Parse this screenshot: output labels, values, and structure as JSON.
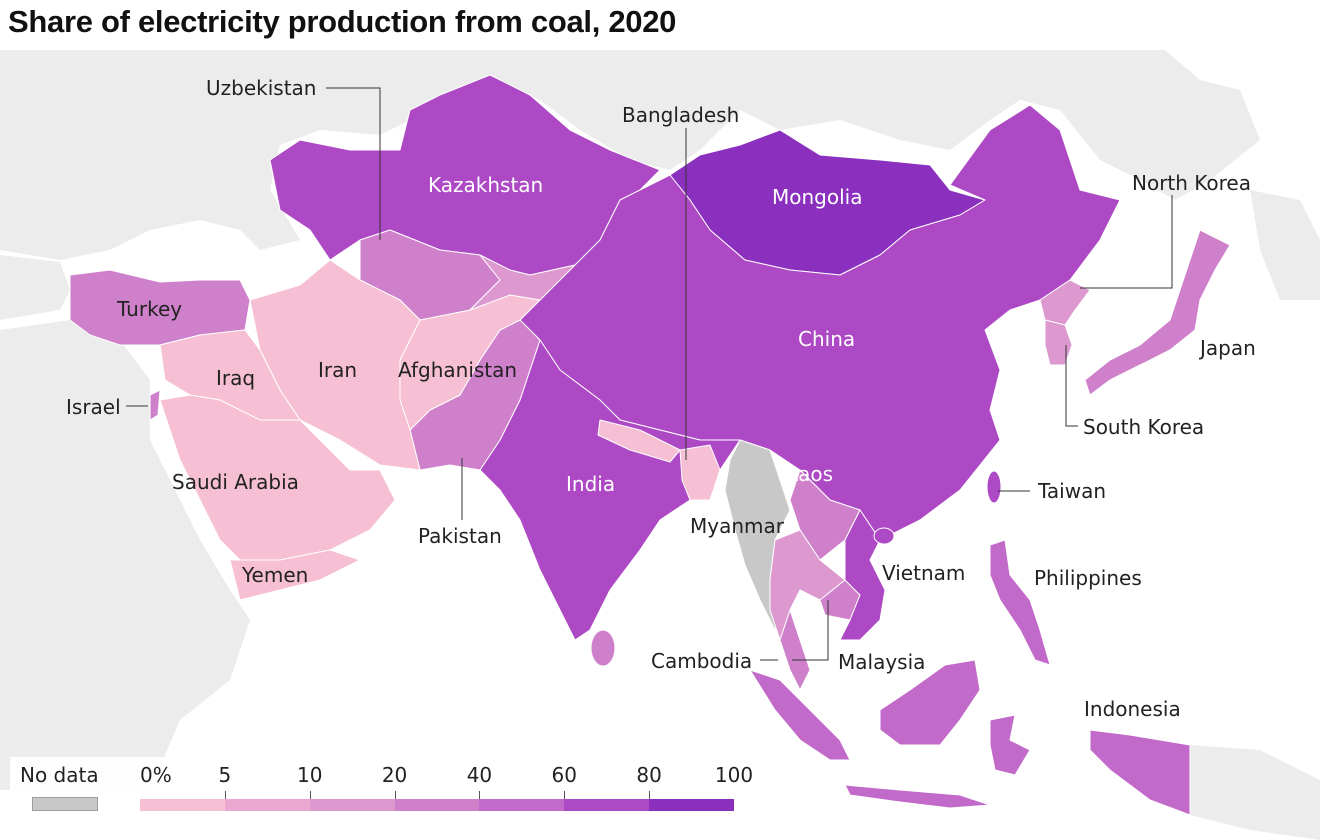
{
  "title": "Share of electricity production from coal, 2020",
  "countries": {
    "kazakhstan": "Kazakhstan",
    "mongolia": "Mongolia",
    "china": "China",
    "india": "India",
    "turkey": "Turkey",
    "iran": "Iran",
    "iraq": "Iraq",
    "afghanistan": "Afghanistan",
    "pakistan": "Pakistan",
    "saudi_arabia": "Saudi Arabia",
    "yemen": "Yemen",
    "israel": "Israel",
    "uzbekistan": "Uzbekistan",
    "bangladesh": "Bangladesh",
    "myanmar": "Myanmar",
    "laos": "Laos",
    "vietnam": "Vietnam",
    "cambodia": "Cambodia",
    "malaysia": "Malaysia",
    "philippines": "Philippines",
    "indonesia": "Indonesia",
    "north_korea": "North Korea",
    "south_korea": "South Korea",
    "japan": "Japan",
    "taiwan": "Taiwan"
  },
  "legend": {
    "no_data_label": "No data",
    "no_data_color": "#c8c8c8",
    "ticks": [
      "0%",
      "5",
      "10",
      "20",
      "40",
      "60",
      "80",
      "100"
    ],
    "colors": [
      "#f6bfd3",
      "#eaa7cf",
      "#dc98cf",
      "#cf80cb",
      "#c26ac9",
      "#ad49c4",
      "#8a2fbe"
    ]
  }
}
